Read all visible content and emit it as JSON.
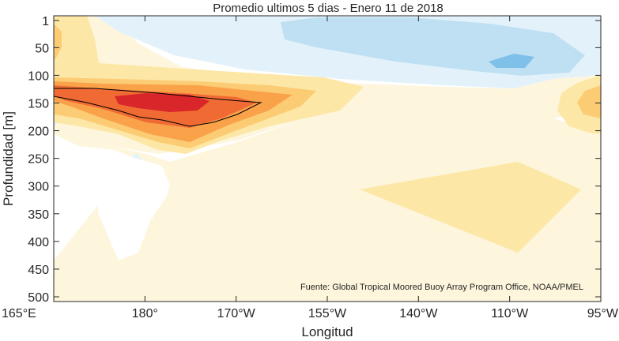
{
  "chart_data": {
    "type": "heatmap",
    "title": "Promedio ultimos 5 dias - Enero 11 de 2018",
    "xlabel": "Longitud",
    "ylabel": "Profundidad [m]",
    "source_note": "Fuente: Global Tropical Moored Buoy Array Program Office, NOAA/PMEL",
    "x_ticks": [
      "165°E",
      "180°",
      "170°W",
      "155°W",
      "140°W",
      "110°W",
      "95°W"
    ],
    "y_ticks": [
      "1",
      "50",
      "100",
      "150",
      "200",
      "250",
      "300",
      "350",
      "400",
      "450",
      "500"
    ],
    "y_tick_values": [
      1,
      50,
      100,
      150,
      200,
      250,
      300,
      350,
      400,
      450,
      500
    ],
    "ylim": [
      1,
      500
    ],
    "y_reversed": true,
    "stations": [
      "165°E",
      "180°",
      "170°W",
      "155°W",
      "140°W",
      "110°W",
      "95°W"
    ],
    "colors": {
      "warm_1": "#fdf5dc",
      "warm_2": "#fde7a6",
      "warm_3": "#fccc74",
      "warm_4": "#f9a24a",
      "warm_5": "#f06b33",
      "warm_6": "#d8262a",
      "cool_1": "#e3f2fa",
      "cool_2": "#bfe0f3",
      "cool_3": "#7fc0e8",
      "contour_line": "#000000"
    }
  }
}
